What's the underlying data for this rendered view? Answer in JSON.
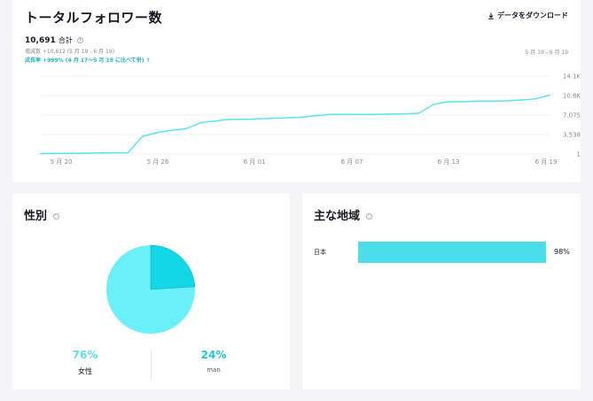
{
  "header": {
    "title": "トータルフォロワー数",
    "download_label": "データをダウンロード"
  },
  "summary": {
    "total_value": "10,691",
    "total_unit": "合計",
    "increase_line": "増減数 +10,612 (5 月 19 - 6 月 19)",
    "growth_line": "成長率 +999% (4 月 17〜5 月 18 に比べて併) ↑",
    "date_range": "5 月 19 - 6 月 19"
  },
  "chart_data": {
    "type": "line",
    "x_ticks": [
      "5 月 20",
      "5 月 26",
      "6 月 01",
      "6 月 07",
      "6 月 13",
      "6 月 19"
    ],
    "y_ticks": [
      "14.1K",
      "10.6K",
      "7,075",
      "3,538",
      "1"
    ],
    "ylim": [
      1,
      14150
    ],
    "series": [
      {
        "values": [
          80,
          100,
          120,
          150,
          200,
          220,
          250,
          3200,
          3900,
          4300,
          4600,
          5700,
          6000,
          6300,
          6300,
          6400,
          6500,
          6600,
          6700,
          7000,
          7200,
          7200,
          7200,
          7200,
          7250,
          7300,
          7400,
          9000,
          9500,
          9500,
          9600,
          9600,
          9650,
          9800,
          10000,
          10691
        ],
        "color": "#5ce3f0"
      }
    ],
    "grid": true
  },
  "gender": {
    "title": "性別",
    "female_pct": 76,
    "male_pct": 24,
    "female_pct_label": "76%",
    "male_pct_label": "24%",
    "female_label": "女性",
    "male_label": "man",
    "female_color": "#6af0f8",
    "male_color": "#13d7e6"
  },
  "region": {
    "title": "主な地域",
    "items": [
      {
        "name": "日本",
        "pct": 98,
        "pct_label": "98%"
      }
    ],
    "bar_color": "#4adeeb"
  }
}
